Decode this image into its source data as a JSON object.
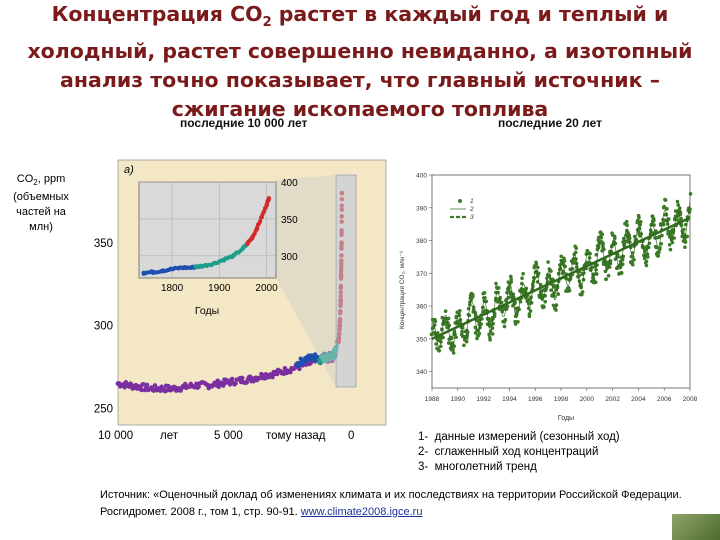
{
  "title": {
    "line1_pre": "Концентрация CO",
    "line1_sub": "2",
    "line1_post": " растет в каждый год и теплый и",
    "line2": "холодный, растет совершенно невиданно, а изотопный",
    "line3": "анализ точно показывает, что главный источник –",
    "line4": "сжигание ископаемого топлива"
  },
  "colors": {
    "title": "#7a1a1a",
    "panel_bg": "#f4e7c6",
    "inset_bg": "#d9d9d9",
    "series_purple": "#7b2fa0",
    "series_blue": "#1f4fb0",
    "series_teal": "#1ca08a",
    "series_red": "#d42a2a",
    "series_green": "#3d7a28"
  },
  "chart_data": [
    {
      "type": "scatter",
      "caption": "последние 10 000 лет",
      "panel_letter": "a)",
      "ylabel_lines": [
        "CO",
        "2",
        ", ppm",
        "(объемных",
        "частей на",
        "млн)"
      ],
      "xlabel": "лет",
      "xlabel_extra": "тому назад",
      "x_ticks": [
        "10 000",
        "5 000",
        "0"
      ],
      "y_ticks": [
        250,
        300,
        350
      ],
      "xlim": [
        10000,
        0
      ],
      "ylim": [
        240,
        400
      ],
      "series": [
        {
          "color": "purple",
          "x": [
            10000,
            9500,
            9000,
            8500,
            8000,
            7500,
            7000,
            6500,
            6000,
            5500,
            5000,
            4500,
            4000,
            3500,
            3000,
            2500,
            2000,
            1500,
            1000,
            700,
            400
          ],
          "y": [
            265,
            264,
            263,
            262,
            262,
            262,
            263,
            264,
            264,
            265,
            266,
            267,
            268,
            270,
            271,
            273,
            275,
            277,
            279,
            280,
            280
          ]
        },
        {
          "color": "blue",
          "x": [
            2000,
            1600,
            1200,
            900,
            600,
            400,
            300
          ],
          "y": [
            277,
            280,
            281,
            281,
            282,
            282,
            283
          ]
        },
        {
          "color": "teal",
          "x": [
            1000,
            800,
            600,
            400,
            300,
            200
          ],
          "y": [
            279,
            280,
            281,
            282,
            285,
            290
          ]
        },
        {
          "color": "red",
          "x": [
            150,
            100,
            60,
            40,
            20,
            5
          ],
          "y": [
            291,
            300,
            315,
            330,
            350,
            380
          ]
        }
      ],
      "inset": {
        "xlabel": "Годы",
        "x_ticks": [
          1800,
          1900,
          2000
        ],
        "y_ticks": [
          300,
          350,
          400
        ],
        "xlim": [
          1730,
          2020
        ],
        "ylim": [
          270,
          400
        ],
        "series": [
          {
            "color": "blue",
            "x": [
              1740,
              1760,
              1780,
              1800,
              1820,
              1840,
              1860
            ],
            "y": [
              277,
              278,
              280,
              282,
              284,
              284,
              286
            ]
          },
          {
            "color": "teal",
            "x": [
              1850,
              1870,
              1890,
              1910,
              1930,
              1950,
              1960
            ],
            "y": [
              285,
              287,
              290,
              295,
              300,
              310,
              317
            ]
          },
          {
            "color": "red",
            "x": [
              1960,
              1970,
              1980,
              1990,
              2000,
              2005
            ],
            "y": [
              317,
              325,
              338,
              353,
              369,
              378
            ]
          }
        ]
      }
    },
    {
      "type": "scatter",
      "caption": "последние 20 лет",
      "ylabel": "Концентрация CO₂, млн⁻¹",
      "xlabel": "Годы",
      "x_ticks": [
        1988,
        1990,
        1992,
        1994,
        1996,
        1998,
        2000,
        2002,
        2004,
        2006,
        2008
      ],
      "y_ticks": [
        340,
        350,
        360,
        370,
        380,
        390,
        400
      ],
      "xlim": [
        1988,
        2008
      ],
      "ylim": [
        335,
        400
      ],
      "legend_keys": [
        "1",
        "2",
        "3"
      ],
      "trend": {
        "x": [
          1988,
          2008
        ],
        "y": [
          350,
          387
        ]
      },
      "seasonal_amplitude": 8
    }
  ],
  "legend": [
    {
      "num": "1-",
      "text": "данные измерений (сезонный ход)"
    },
    {
      "num": "2-",
      "text": "сглаженный ход концентраций"
    },
    {
      "num": "3-",
      "text": "многолетний тренд"
    }
  ],
  "source": {
    "prefix": "Источник: «Оценочный доклад об изменениях климата и их последствиях на территории Российской Федерации. Росгидромет. 2008 г., том 1, стр. 90-91. ",
    "link": "www.climate2008.igce.ru"
  }
}
